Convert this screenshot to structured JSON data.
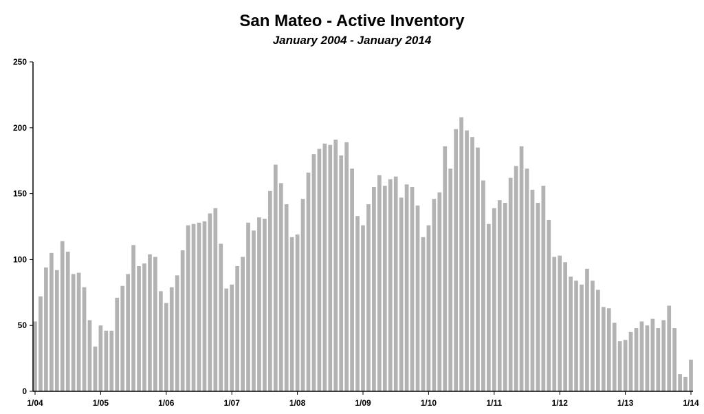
{
  "chart_data": {
    "type": "bar",
    "title": "San Mateo - Active Inventory",
    "subtitle": "January 2004 - January 2014",
    "xlabel": "",
    "ylabel": "",
    "ylim": [
      0,
      250
    ],
    "yticks": [
      0,
      50,
      100,
      150,
      200,
      250
    ],
    "x_tick_labels": [
      "1/04",
      "1/05",
      "1/06",
      "1/07",
      "1/08",
      "1/09",
      "1/10",
      "1/11",
      "1/12",
      "1/13",
      "1/14"
    ],
    "bar_color": "#b3b3b3",
    "grid": false,
    "legend": "none",
    "categories": [
      "2004-01",
      "2004-02",
      "2004-03",
      "2004-04",
      "2004-05",
      "2004-06",
      "2004-07",
      "2004-08",
      "2004-09",
      "2004-10",
      "2004-11",
      "2004-12",
      "2005-01",
      "2005-02",
      "2005-03",
      "2005-04",
      "2005-05",
      "2005-06",
      "2005-07",
      "2005-08",
      "2005-09",
      "2005-10",
      "2005-11",
      "2005-12",
      "2006-01",
      "2006-02",
      "2006-03",
      "2006-04",
      "2006-05",
      "2006-06",
      "2006-07",
      "2006-08",
      "2006-09",
      "2006-10",
      "2006-11",
      "2006-12",
      "2007-01",
      "2007-02",
      "2007-03",
      "2007-04",
      "2007-05",
      "2007-06",
      "2007-07",
      "2007-08",
      "2007-09",
      "2007-10",
      "2007-11",
      "2007-12",
      "2008-01",
      "2008-02",
      "2008-03",
      "2008-04",
      "2008-05",
      "2008-06",
      "2008-07",
      "2008-08",
      "2008-09",
      "2008-10",
      "2008-11",
      "2008-12",
      "2009-01",
      "2009-02",
      "2009-03",
      "2009-04",
      "2009-05",
      "2009-06",
      "2009-07",
      "2009-08",
      "2009-09",
      "2009-10",
      "2009-11",
      "2009-12",
      "2010-01",
      "2010-02",
      "2010-03",
      "2010-04",
      "2010-05",
      "2010-06",
      "2010-07",
      "2010-08",
      "2010-09",
      "2010-10",
      "2010-11",
      "2010-12",
      "2011-01",
      "2011-02",
      "2011-03",
      "2011-04",
      "2011-05",
      "2011-06",
      "2011-07",
      "2011-08",
      "2011-09",
      "2011-10",
      "2011-11",
      "2011-12",
      "2012-01",
      "2012-02",
      "2012-03",
      "2012-04",
      "2012-05",
      "2012-06",
      "2012-07",
      "2012-08",
      "2012-09",
      "2012-10",
      "2012-11",
      "2012-12",
      "2013-01",
      "2013-02",
      "2013-03",
      "2013-04",
      "2013-05",
      "2013-06",
      "2013-07",
      "2013-08",
      "2013-09",
      "2013-10",
      "2013-11",
      "2013-12",
      "2014-01"
    ],
    "values": [
      53,
      72,
      94,
      105,
      92,
      114,
      106,
      89,
      90,
      79,
      54,
      34,
      50,
      46,
      46,
      71,
      80,
      89,
      111,
      95,
      97,
      104,
      102,
      76,
      67,
      79,
      88,
      107,
      126,
      127,
      128,
      129,
      135,
      139,
      112,
      78,
      81,
      95,
      102,
      128,
      122,
      132,
      131,
      152,
      172,
      158,
      142,
      117,
      119,
      146,
      166,
      180,
      184,
      188,
      187,
      191,
      179,
      189,
      169,
      133,
      126,
      142,
      155,
      164,
      156,
      161,
      163,
      147,
      157,
      155,
      141,
      117,
      126,
      146,
      151,
      186,
      169,
      199,
      208,
      198,
      193,
      185,
      160,
      127,
      139,
      145,
      143,
      162,
      171,
      186,
      169,
      153,
      143,
      156,
      130,
      102,
      103,
      98,
      87,
      84,
      81,
      93,
      84,
      77,
      64,
      63,
      52,
      38,
      39,
      45,
      48,
      53,
      50,
      55,
      48,
      54,
      65,
      48,
      13,
      11,
      24
    ]
  }
}
